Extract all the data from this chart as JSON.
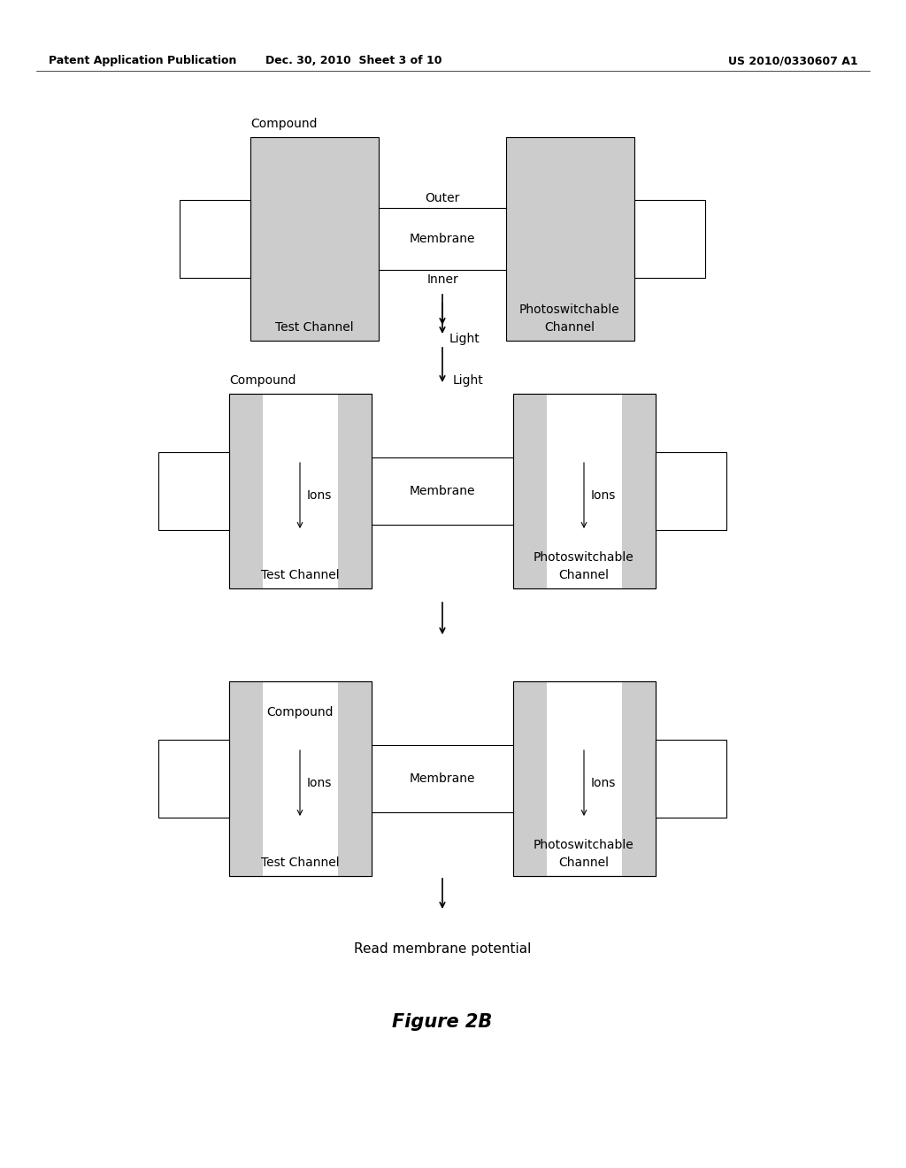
{
  "header_left": "Patent Application Publication",
  "header_mid": "Dec. 30, 2010  Sheet 3 of 10",
  "header_right": "US 2010/0330607 A1",
  "figure_label": "Figure 2B",
  "bg_color": "#ffffff",
  "box_fill": "#cccccc",
  "box_edge": "#000000",
  "panels": [
    {
      "type": "closed",
      "compound_pos": "above_left",
      "compound_label": "Compound",
      "outer_label": "Outer",
      "mem_label": "Membrane",
      "inner_label": "Inner",
      "test_label": "Test Channel",
      "photo_label1": "Photoswitchable",
      "photo_label2": "Channel",
      "ions_left": false,
      "ions_right": false,
      "light_label": false
    },
    {
      "type": "open",
      "compound_pos": "above_left",
      "compound_label": "Compound",
      "outer_label": false,
      "mem_label": "Membrane",
      "inner_label": false,
      "test_label": "Test Channel",
      "photo_label1": "Photoswitchable",
      "photo_label2": "Channel",
      "ions_left": "Ions",
      "ions_right": "Ions",
      "light_label": "Light"
    },
    {
      "type": "open",
      "compound_pos": "inside_left",
      "compound_label": "Compound",
      "outer_label": false,
      "mem_label": "Membrane",
      "inner_label": false,
      "test_label": "Test Channel",
      "photo_label1": "Photoswitchable",
      "photo_label2": "Channel",
      "ions_left": "Ions",
      "ions_right": "Ions",
      "light_label": false
    }
  ],
  "bottom_text": "Read membrane potential"
}
